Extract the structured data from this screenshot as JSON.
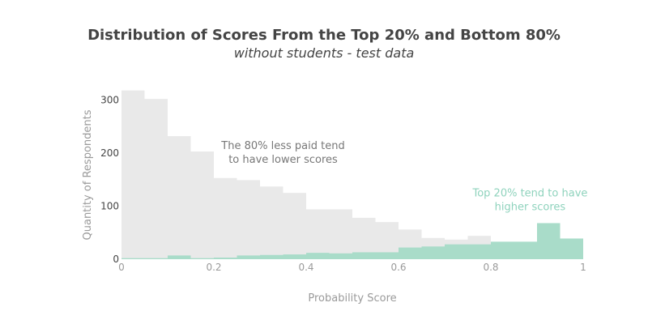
{
  "chart_data": {
    "type": "bar",
    "title": "Distribution of Scores From the Top 20% and Bottom 80%",
    "subtitle": "without students - test data",
    "xlabel": "Probability Score",
    "ylabel": "Quantity of Respondents",
    "xlim": [
      0,
      1
    ],
    "ylim": [
      0,
      320
    ],
    "x_ticks": [
      0,
      0.2,
      0.4,
      0.6,
      0.8,
      1
    ],
    "x_tick_labels": [
      "0",
      "0.2",
      "0.4",
      "0.6",
      "0.8",
      "1"
    ],
    "y_ticks": [
      0,
      100,
      200,
      300
    ],
    "bin_width": 0.05,
    "bin_starts": [
      0,
      0.05,
      0.1,
      0.15,
      0.2,
      0.25,
      0.3,
      0.35,
      0.4,
      0.45,
      0.5,
      0.55,
      0.6,
      0.65,
      0.7,
      0.75,
      0.8,
      0.85,
      0.9,
      0.95
    ],
    "series": [
      {
        "name": "Bottom 80%",
        "color": "#e9e9e9",
        "values": [
          318,
          302,
          232,
          203,
          153,
          149,
          137,
          125,
          94,
          94,
          78,
          70,
          56,
          40,
          37,
          44,
          28,
          30,
          14,
          0
        ]
      },
      {
        "name": "Top 20%",
        "color": "#a9dcc9",
        "values": [
          2,
          2,
          7,
          2,
          3,
          7,
          8,
          9,
          12,
          11,
          13,
          13,
          22,
          24,
          28,
          28,
          33,
          33,
          68,
          39
        ]
      }
    ],
    "annotations": [
      {
        "lines": [
          "The 80% less paid tend",
          "to have lower scores"
        ],
        "x": 0.35,
        "y": 208,
        "color": "#777777"
      },
      {
        "lines": [
          "Top 20% tend to have",
          "higher scores"
        ],
        "x": 0.885,
        "y": 118,
        "color": "#8fd3bd"
      }
    ],
    "grid": false,
    "legend": "none"
  }
}
